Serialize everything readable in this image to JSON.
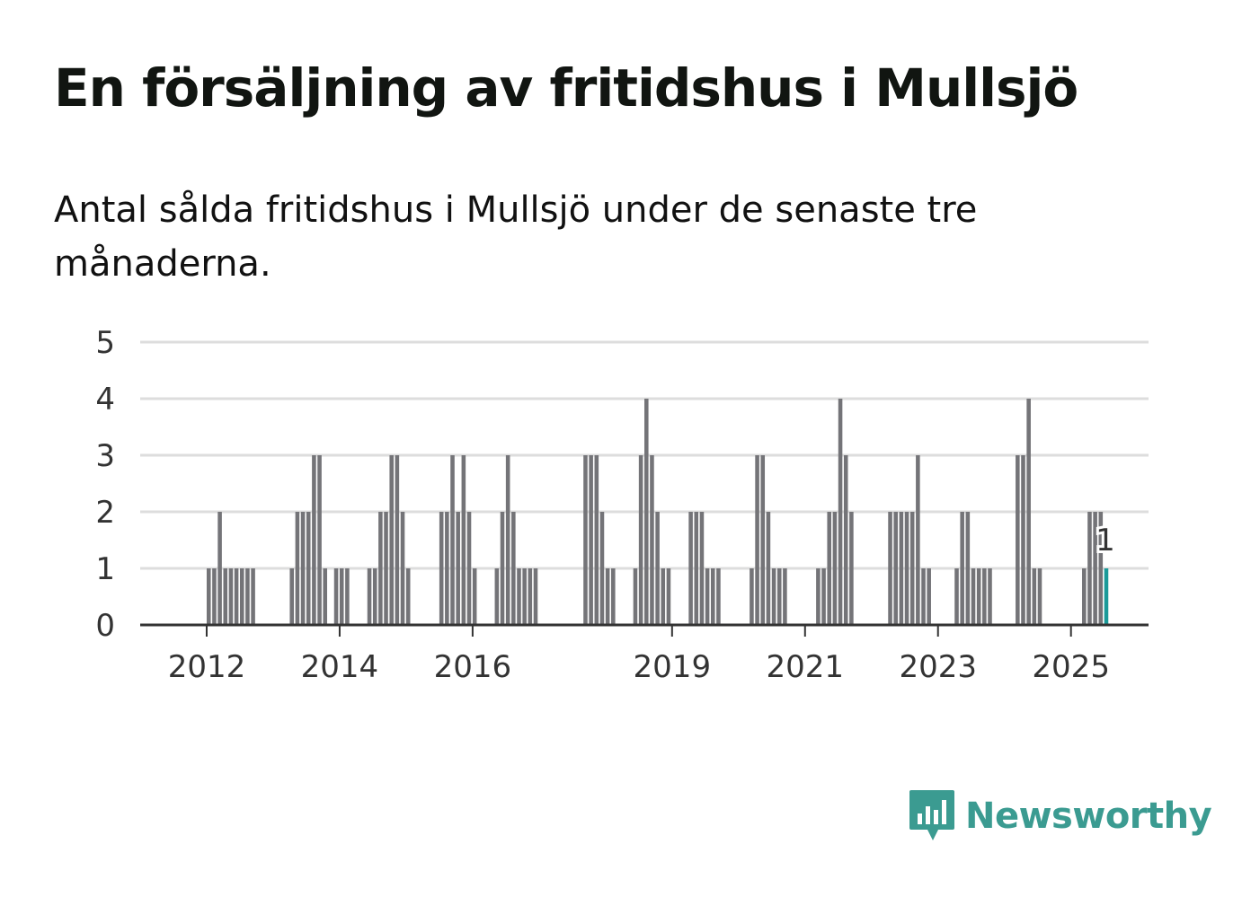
{
  "header": {
    "title": "En försäljning av fritidshus i Mullsjö",
    "subtitle": "Antal sålda fritidshus i Mullsjö under de senaste tre månaderna."
  },
  "brand": {
    "name": "Newsworthy",
    "color": "#3b9b91"
  },
  "colors": {
    "bar": "#747478",
    "highlight": "#1a9a99",
    "grid": "#dddddd",
    "axis": "#333333"
  },
  "chart_data": {
    "type": "bar",
    "title": "En försäljning av fritidshus i Mullsjö",
    "xlabel": "",
    "ylabel": "",
    "ylim": [
      0,
      5
    ],
    "y_ticks": [
      0,
      1,
      2,
      3,
      4,
      5
    ],
    "x_start": "2011-01",
    "x_end": "2026-03",
    "x_ticks": [
      "2012",
      "2014",
      "2016",
      "2019",
      "2021",
      "2023",
      "2025"
    ],
    "x_tick_months": [
      "2012-01",
      "2014-01",
      "2016-01",
      "2019-01",
      "2021-01",
      "2023-01",
      "2025-01"
    ],
    "series": [
      {
        "name": "Antal sålda fritidshus",
        "points": [
          [
            "2012-01",
            1
          ],
          [
            "2012-02",
            1
          ],
          [
            "2012-03",
            2
          ],
          [
            "2012-04",
            1
          ],
          [
            "2012-05",
            1
          ],
          [
            "2012-06",
            1
          ],
          [
            "2012-07",
            1
          ],
          [
            "2012-08",
            1
          ],
          [
            "2012-09",
            1
          ],
          [
            "2013-04",
            1
          ],
          [
            "2013-05",
            2
          ],
          [
            "2013-06",
            2
          ],
          [
            "2013-07",
            2
          ],
          [
            "2013-08",
            3
          ],
          [
            "2013-09",
            3
          ],
          [
            "2013-10",
            1
          ],
          [
            "2013-12",
            1
          ],
          [
            "2014-01",
            1
          ],
          [
            "2014-02",
            1
          ],
          [
            "2014-06",
            1
          ],
          [
            "2014-07",
            1
          ],
          [
            "2014-08",
            2
          ],
          [
            "2014-09",
            2
          ],
          [
            "2014-10",
            3
          ],
          [
            "2014-11",
            3
          ],
          [
            "2014-12",
            2
          ],
          [
            "2015-01",
            1
          ],
          [
            "2015-07",
            2
          ],
          [
            "2015-08",
            2
          ],
          [
            "2015-09",
            3
          ],
          [
            "2015-10",
            2
          ],
          [
            "2015-11",
            3
          ],
          [
            "2015-12",
            2
          ],
          [
            "2016-01",
            1
          ],
          [
            "2016-05",
            1
          ],
          [
            "2016-06",
            2
          ],
          [
            "2016-07",
            3
          ],
          [
            "2016-08",
            2
          ],
          [
            "2016-09",
            1
          ],
          [
            "2016-10",
            1
          ],
          [
            "2016-11",
            1
          ],
          [
            "2016-12",
            1
          ],
          [
            "2017-09",
            3
          ],
          [
            "2017-10",
            3
          ],
          [
            "2017-11",
            3
          ],
          [
            "2017-12",
            2
          ],
          [
            "2018-01",
            1
          ],
          [
            "2018-02",
            1
          ],
          [
            "2018-06",
            1
          ],
          [
            "2018-07",
            3
          ],
          [
            "2018-08",
            4
          ],
          [
            "2018-09",
            3
          ],
          [
            "2018-10",
            2
          ],
          [
            "2018-11",
            1
          ],
          [
            "2018-12",
            1
          ],
          [
            "2019-04",
            2
          ],
          [
            "2019-05",
            2
          ],
          [
            "2019-06",
            2
          ],
          [
            "2019-07",
            1
          ],
          [
            "2019-08",
            1
          ],
          [
            "2019-09",
            1
          ],
          [
            "2020-03",
            1
          ],
          [
            "2020-04",
            3
          ],
          [
            "2020-05",
            3
          ],
          [
            "2020-06",
            2
          ],
          [
            "2020-07",
            1
          ],
          [
            "2020-08",
            1
          ],
          [
            "2020-09",
            1
          ],
          [
            "2021-03",
            1
          ],
          [
            "2021-04",
            1
          ],
          [
            "2021-05",
            2
          ],
          [
            "2021-06",
            2
          ],
          [
            "2021-07",
            4
          ],
          [
            "2021-08",
            3
          ],
          [
            "2021-09",
            2
          ],
          [
            "2022-04",
            2
          ],
          [
            "2022-05",
            2
          ],
          [
            "2022-06",
            2
          ],
          [
            "2022-07",
            2
          ],
          [
            "2022-08",
            2
          ],
          [
            "2022-09",
            3
          ],
          [
            "2022-10",
            1
          ],
          [
            "2022-11",
            1
          ],
          [
            "2023-04",
            1
          ],
          [
            "2023-05",
            2
          ],
          [
            "2023-06",
            2
          ],
          [
            "2023-07",
            1
          ],
          [
            "2023-08",
            1
          ],
          [
            "2023-09",
            1
          ],
          [
            "2023-10",
            1
          ],
          [
            "2024-03",
            3
          ],
          [
            "2024-04",
            3
          ],
          [
            "2024-05",
            4
          ],
          [
            "2024-06",
            1
          ],
          [
            "2024-07",
            1
          ],
          [
            "2025-03",
            1
          ],
          [
            "2025-04",
            2
          ],
          [
            "2025-05",
            2
          ],
          [
            "2025-06",
            2
          ],
          [
            "2025-07",
            1
          ]
        ]
      }
    ],
    "highlight": {
      "month": "2025-07",
      "value": 1,
      "label": "1"
    }
  }
}
